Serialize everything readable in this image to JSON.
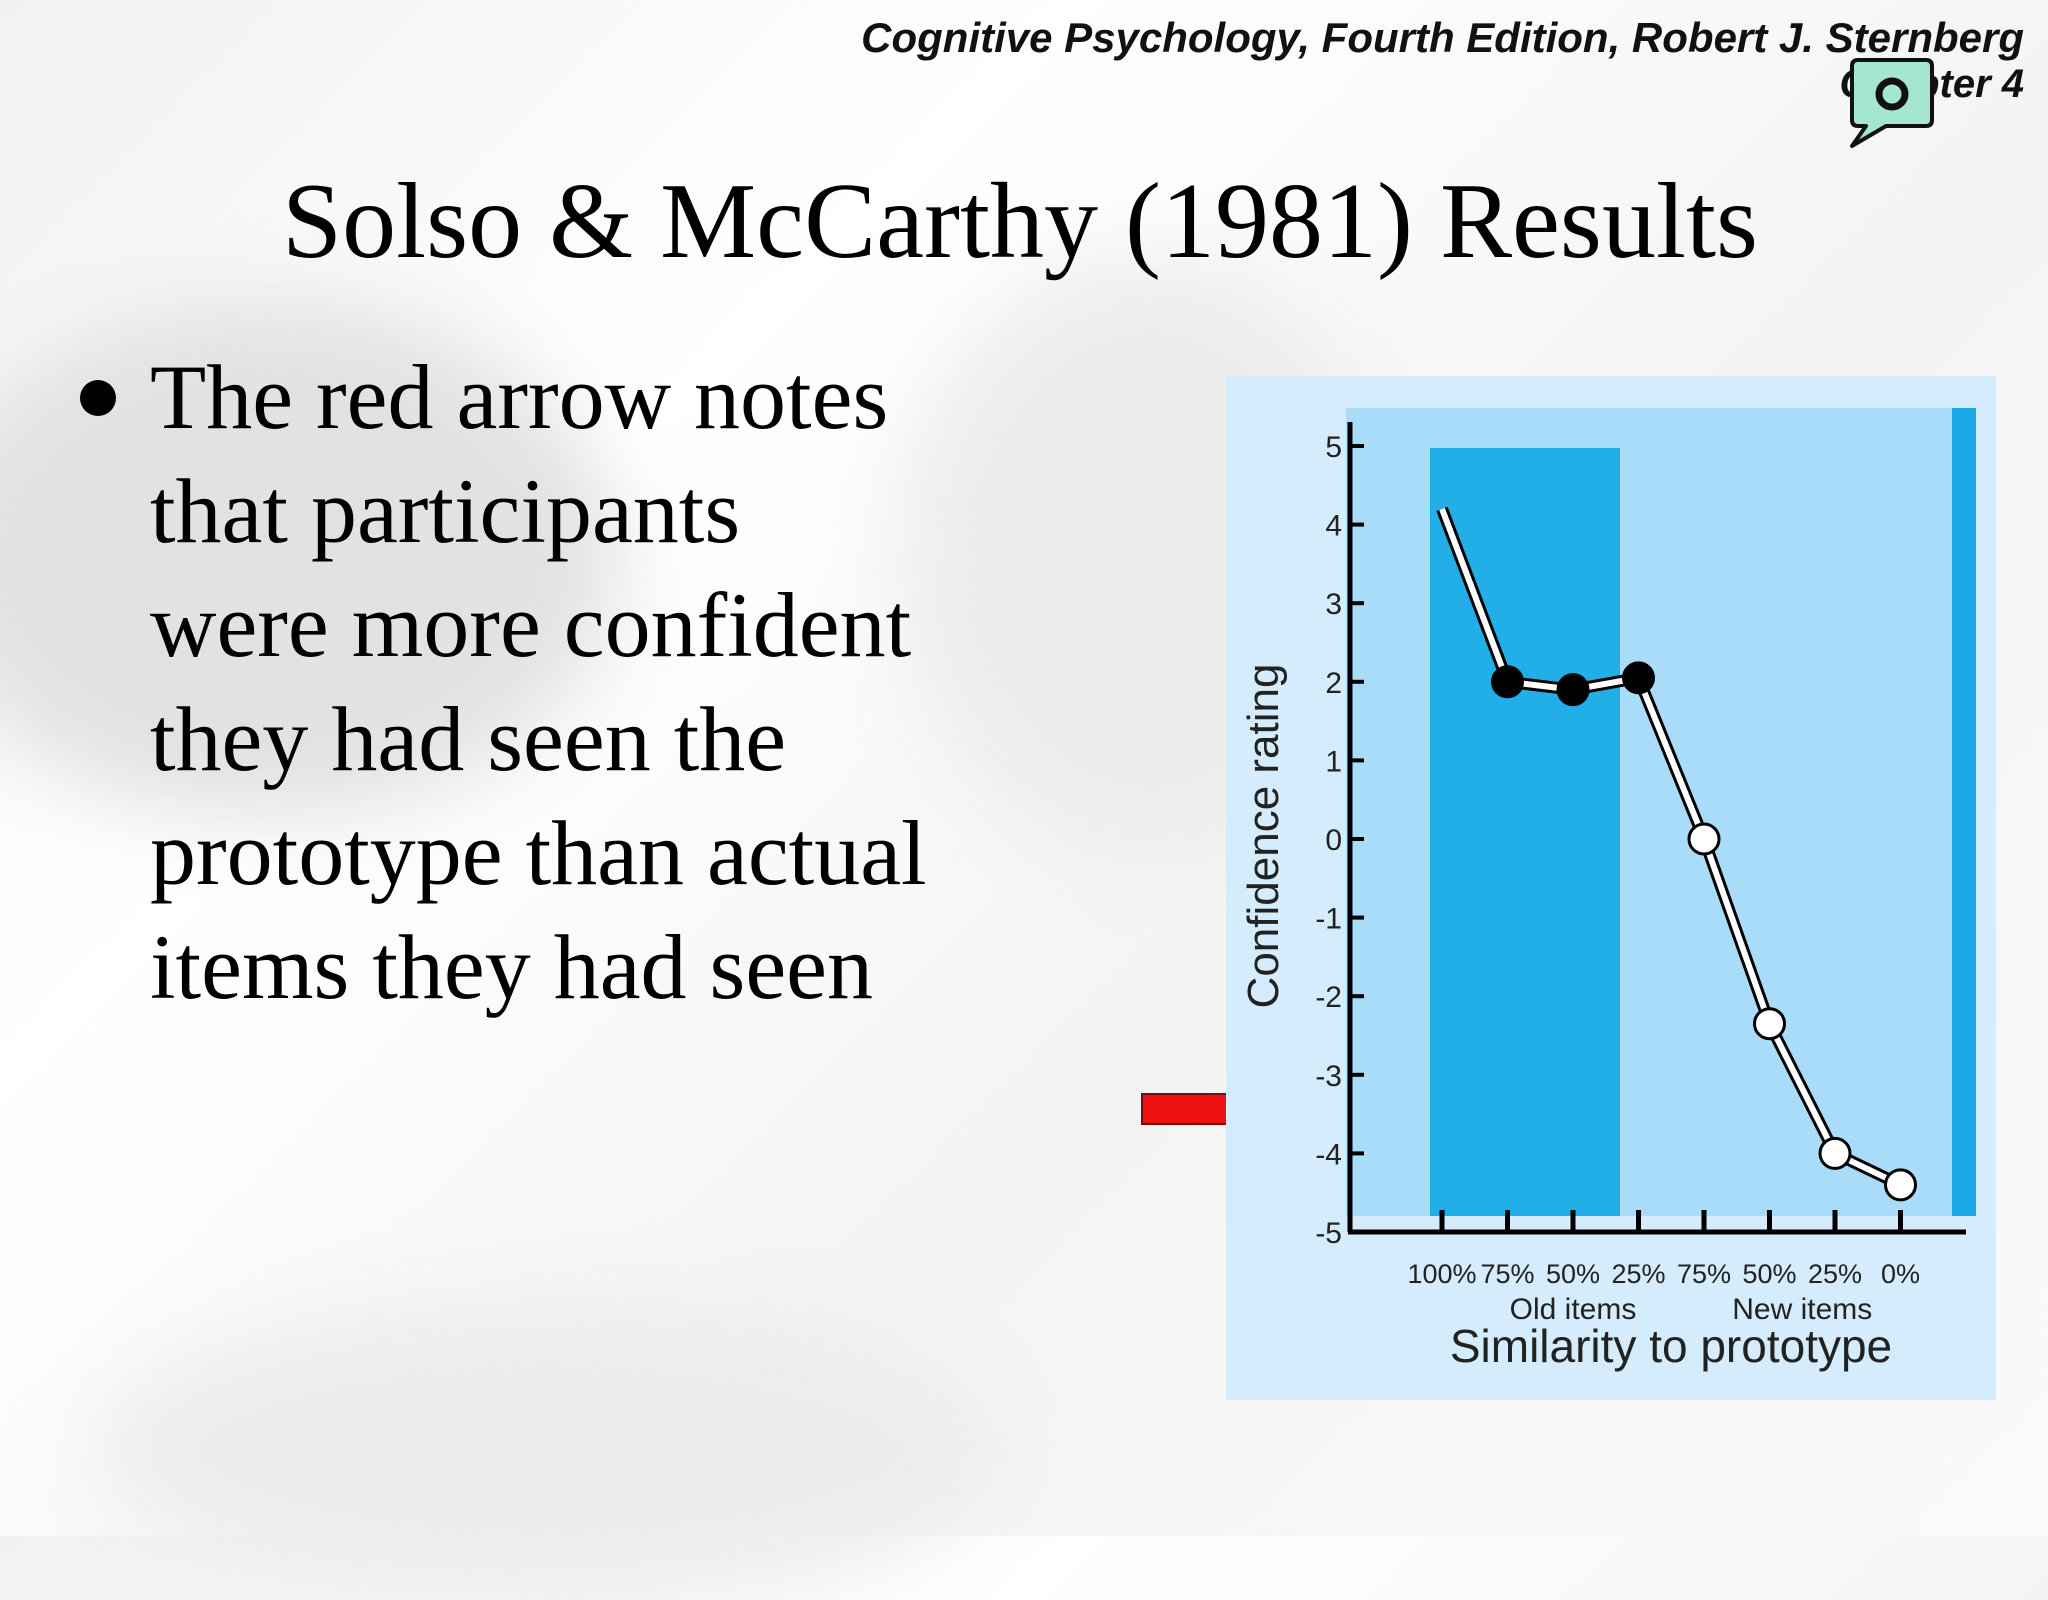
{
  "header": {
    "book_title": "Cognitive Psychology, Fourth Edition, Robert J. Sternberg",
    "chapter": "Chapter 4",
    "speech_icon": "speech-bubble-icon"
  },
  "slide": {
    "title": "Solso & McCarthy (1981) Results",
    "bullet": "The red arrow notes that participants were more confident they had seen the prototype than actual items they had seen"
  },
  "annotation": {
    "arrow_icon": "red-arrow-icon",
    "arrow_color": "#ee1111",
    "arrow_points_to_y": -3.5
  },
  "chart_data": {
    "type": "line",
    "title": "",
    "xlabel": "Similarity to prototype",
    "ylabel": "Confidence rating",
    "categories": [
      "100%",
      "75%",
      "50%",
      "25%",
      "75%",
      "50%",
      "25%",
      "0%"
    ],
    "groups": [
      {
        "label": "Old items",
        "from": 1,
        "to": 3
      },
      {
        "label": "New items",
        "from": 4,
        "to": 7
      }
    ],
    "values": [
      4.2,
      2.0,
      1.9,
      2.05,
      0.0,
      -2.35,
      -4.0,
      -4.4
    ],
    "marker_styles": [
      "none",
      "filled",
      "filled",
      "filled",
      "open",
      "open",
      "open",
      "open"
    ],
    "ylim": [
      -5,
      5
    ],
    "yticks": [
      5,
      4,
      3,
      2,
      1,
      0,
      -1,
      -2,
      -3,
      -4,
      -5
    ],
    "grid": false,
    "colors": {
      "panel": "#a9dcf8",
      "old_items_band": "#22aee6",
      "right_edge": "#1aa8e4",
      "outer": "#d4ecfb"
    }
  }
}
